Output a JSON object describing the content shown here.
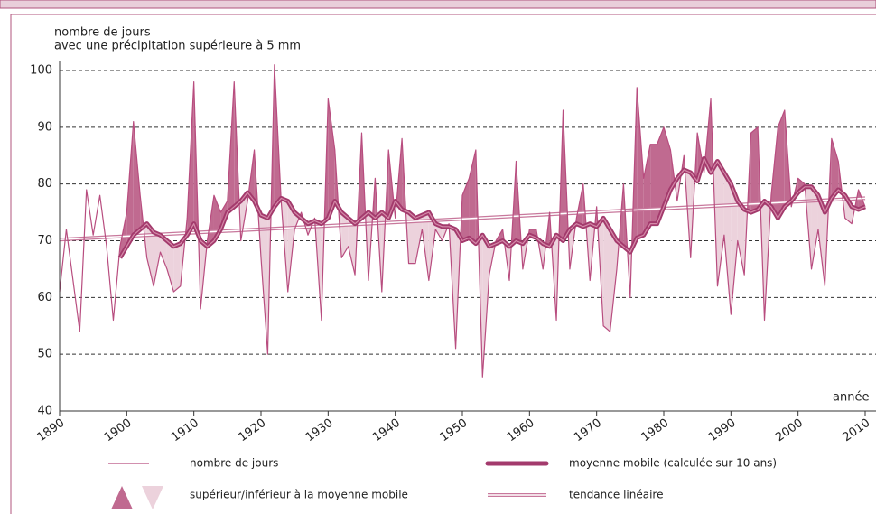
{
  "chart_data": {
    "type": "line",
    "y_label": [
      "nombre de jours",
      "avec une précipitation supérieure à 5 mm"
    ],
    "x_label": "année",
    "x": [
      1890,
      1891,
      1892,
      1893,
      1894,
      1895,
      1896,
      1897,
      1898,
      1899,
      1900,
      1901,
      1902,
      1903,
      1904,
      1905,
      1906,
      1907,
      1908,
      1909,
      1910,
      1911,
      1912,
      1913,
      1914,
      1915,
      1916,
      1917,
      1918,
      1919,
      1920,
      1921,
      1922,
      1923,
      1924,
      1925,
      1926,
      1927,
      1928,
      1929,
      1930,
      1931,
      1932,
      1933,
      1934,
      1935,
      1936,
      1937,
      1938,
      1939,
      1940,
      1941,
      1942,
      1943,
      1944,
      1945,
      1946,
      1947,
      1948,
      1949,
      1950,
      1951,
      1952,
      1953,
      1954,
      1955,
      1956,
      1957,
      1958,
      1959,
      1960,
      1961,
      1962,
      1963,
      1964,
      1965,
      1966,
      1967,
      1968,
      1969,
      1970,
      1971,
      1972,
      1973,
      1974,
      1975,
      1976,
      1977,
      1978,
      1979,
      1980,
      1981,
      1982,
      1983,
      1984,
      1985,
      1986,
      1987,
      1988,
      1989,
      1990,
      1991,
      1992,
      1993,
      1994,
      1995,
      1996,
      1997,
      1998,
      1999,
      2000,
      2001,
      2002,
      2003,
      2004,
      2005,
      2006,
      2007,
      2008,
      2009,
      2010
    ],
    "series": [
      {
        "name": "nombre de jours",
        "color": "#b84d7f",
        "values": [
          61,
          72,
          63,
          54,
          79,
          71,
          78,
          69,
          56,
          69,
          75,
          91,
          78,
          67,
          62,
          68,
          65,
          61,
          62,
          74,
          98,
          58,
          70,
          78,
          75,
          77,
          98,
          70,
          77,
          86,
          67,
          50,
          101,
          77,
          61,
          72,
          75,
          71,
          74,
          56,
          95,
          86,
          67,
          69,
          64,
          89,
          63,
          81,
          61,
          86,
          74,
          88,
          66,
          66,
          72,
          63,
          72,
          70,
          73,
          51,
          78,
          81,
          86,
          46,
          64,
          70,
          72,
          63,
          84,
          65,
          72,
          72,
          65,
          75,
          56,
          93,
          65,
          74,
          80,
          63,
          76,
          55,
          54,
          65,
          80,
          60,
          97,
          81,
          87,
          87,
          90,
          86,
          77,
          85,
          67,
          89,
          82,
          95,
          62,
          71,
          57,
          70,
          64,
          89,
          90,
          56,
          78,
          90,
          93,
          76,
          81,
          80,
          65,
          72,
          62,
          88,
          84,
          74,
          73,
          79,
          76
        ]
      },
      {
        "name": "moyenne mobile (calculée sur 10 ans)",
        "color": "#a33a6c",
        "values": [
          null,
          null,
          null,
          null,
          null,
          null,
          null,
          null,
          null,
          67,
          69,
          71,
          72,
          73,
          71.5,
          71,
          70,
          69,
          69.5,
          71,
          73,
          70,
          69,
          70,
          72,
          75,
          76,
          77,
          78.5,
          77,
          74.5,
          74,
          76,
          77.5,
          77,
          75,
          74,
          73,
          73.5,
          73,
          74,
          77,
          75,
          74,
          73,
          74,
          75,
          74,
          75,
          74,
          77,
          75.5,
          75,
          74,
          74.5,
          75,
          73,
          72.5,
          72.5,
          72,
          70,
          70.5,
          69.5,
          71,
          69,
          69.5,
          70,
          69,
          70,
          69.5,
          71,
          70.5,
          69.5,
          69,
          71,
          70,
          72,
          73,
          72.5,
          73,
          72.5,
          74,
          72,
          70,
          69,
          68,
          70.5,
          71,
          73,
          73,
          76,
          79,
          81,
          82.5,
          82,
          80.5,
          84.5,
          82,
          84,
          82,
          80,
          77,
          75.5,
          75,
          75.5,
          77,
          76,
          74,
          76,
          77,
          78.5,
          79.5,
          79.5,
          78,
          75,
          77.5,
          79,
          78,
          76,
          75.5,
          76
        ]
      }
    ],
    "trend": {
      "name": "tendance linéaire",
      "color": "#c8789c",
      "x": [
        1890,
        2010
      ],
      "values": [
        70.2,
        77.5
      ]
    },
    "fill_legend": "supérieur/inférieur à la moyenne mobile",
    "fill_colors": [
      "#c06a90",
      "#ecd2dc"
    ],
    "xlim": [
      1890,
      2010
    ],
    "ylim": [
      40,
      100
    ],
    "xticks": [
      1890,
      1900,
      1910,
      1920,
      1930,
      1940,
      1950,
      1960,
      1970,
      1980,
      1990,
      2000,
      2010
    ],
    "yticks": [
      40,
      50,
      60,
      70,
      80,
      90,
      100
    ],
    "grid": true
  }
}
